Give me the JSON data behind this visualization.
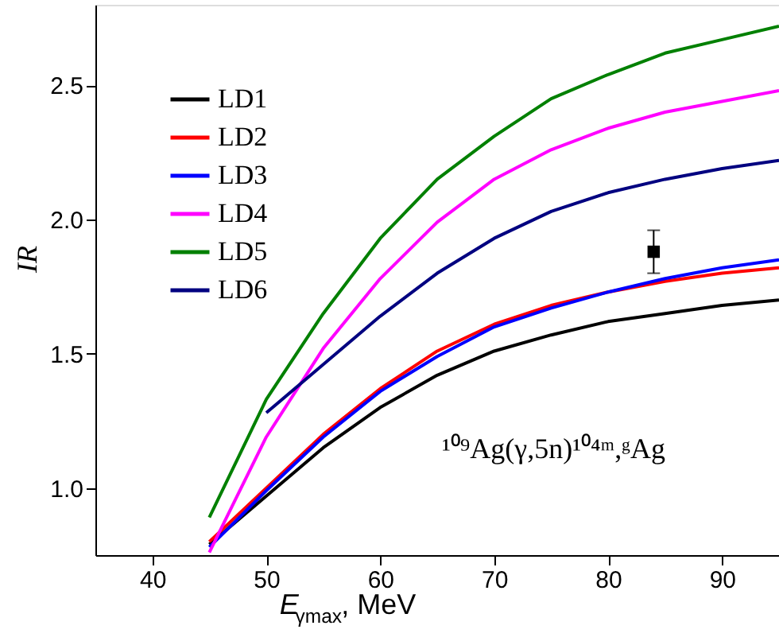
{
  "chart_data": {
    "type": "line",
    "xlabel": "E$_{γmax}$, MeV",
    "ylabel": "IR",
    "x": [
      45,
      50,
      55,
      60,
      65,
      70,
      75,
      80,
      85,
      90,
      95
    ],
    "series": [
      {
        "name": "LD1",
        "color": "#000000",
        "values": [
          0.79,
          0.97,
          1.15,
          1.3,
          1.42,
          1.51,
          1.57,
          1.62,
          1.65,
          1.68,
          1.7
        ]
      },
      {
        "name": "LD2",
        "color": "#ff0000",
        "values": [
          0.8,
          1.0,
          1.2,
          1.37,
          1.51,
          1.61,
          1.68,
          1.73,
          1.77,
          1.8,
          1.82
        ]
      },
      {
        "name": "LD3",
        "color": "#0000ff",
        "values": [
          0.78,
          0.99,
          1.19,
          1.36,
          1.49,
          1.6,
          1.67,
          1.73,
          1.78,
          1.82,
          1.85
        ]
      },
      {
        "name": "LD4",
        "color": "#ff00ff",
        "values": [
          0.76,
          1.19,
          1.52,
          1.78,
          1.99,
          2.15,
          2.26,
          2.34,
          2.4,
          2.44,
          2.48
        ]
      },
      {
        "name": "LD5",
        "color": "#008000",
        "values": [
          0.89,
          1.33,
          1.65,
          1.93,
          2.15,
          2.31,
          2.45,
          2.54,
          2.62,
          2.67,
          2.72
        ]
      },
      {
        "name": "LD6",
        "color": "#000080",
        "x": [
          50,
          55,
          60,
          65,
          70,
          75,
          80,
          85,
          90,
          95
        ],
        "values": [
          1.28,
          1.46,
          1.64,
          1.8,
          1.93,
          2.03,
          2.1,
          2.15,
          2.19,
          2.22
        ]
      },
      {
        "type": "scatter",
        "marker": "square",
        "color": "#000000",
        "x": [
          84
        ],
        "values": [
          1.88
        ],
        "errors": [
          0.08
        ]
      }
    ],
    "annotations": [
      "¹⁰⁹Ag(γ,5n)¹⁰⁴ᵐ,ᵍAg"
    ],
    "xlim": [
      35,
      95
    ],
    "xticks": [
      40,
      50,
      60,
      70,
      80,
      90
    ],
    "ylim": [
      0.75,
      2.8
    ],
    "yticks": [
      {
        "value": 1,
        "label": "1.0"
      },
      1.5,
      {
        "value": 2,
        "label": "2.0"
      },
      2.5
    ],
    "grid": false,
    "legend": "top left"
  }
}
